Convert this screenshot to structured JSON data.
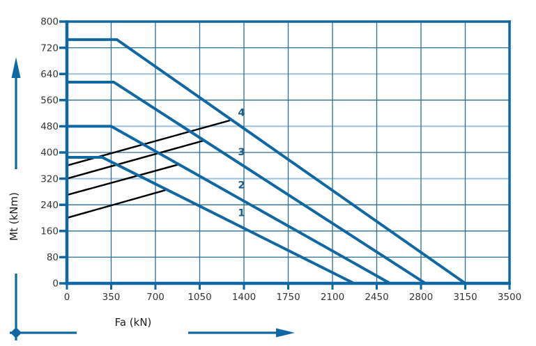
{
  "chart_data": {
    "type": "line",
    "title": "",
    "xlabel": "Fa (kN)",
    "ylabel": "Mt (kNm)",
    "xlim": [
      0,
      3500
    ],
    "ylim": [
      0,
      800
    ],
    "x_ticks": [
      0,
      350,
      700,
      1050,
      1400,
      1750,
      2100,
      2450,
      2800,
      3150,
      3500
    ],
    "y_ticks": [
      0,
      80,
      160,
      240,
      320,
      400,
      480,
      560,
      640,
      720,
      800
    ],
    "grid": "on",
    "legend": "none",
    "light_horizontal_gridlines": [
      320,
      480,
      640
    ],
    "series": [
      {
        "name": "capacity-curve-1",
        "label": "1",
        "kind": "capacity-curve",
        "color": "#0f67a3",
        "width": 4,
        "points": [
          [
            0,
            385
          ],
          [
            280,
            385
          ],
          [
            2270,
            0
          ]
        ],
        "label_pos": [
          1380,
          205
        ]
      },
      {
        "name": "capacity-curve-2",
        "label": "2",
        "kind": "capacity-curve",
        "color": "#0f67a3",
        "width": 4,
        "points": [
          [
            0,
            480
          ],
          [
            350,
            480
          ],
          [
            2555,
            0
          ]
        ],
        "label_pos": [
          1380,
          290
        ]
      },
      {
        "name": "capacity-curve-3",
        "label": "3",
        "kind": "capacity-curve",
        "color": "#0f67a3",
        "width": 4,
        "points": [
          [
            0,
            615
          ],
          [
            370,
            615
          ],
          [
            2835,
            0
          ]
        ],
        "label_pos": [
          1380,
          392
        ]
      },
      {
        "name": "capacity-curve-4",
        "label": "4",
        "kind": "capacity-curve",
        "color": "#0f67a3",
        "width": 4,
        "points": [
          [
            0,
            745
          ],
          [
            395,
            745
          ],
          [
            3150,
            0
          ]
        ],
        "label_pos": [
          1380,
          512
        ]
      },
      {
        "name": "aux-line-1",
        "label": "",
        "kind": "aux-line",
        "color": "#000000",
        "width": 2.5,
        "points": [
          [
            0,
            200
          ],
          [
            780,
            285
          ]
        ]
      },
      {
        "name": "aux-line-2",
        "label": "",
        "kind": "aux-line",
        "color": "#000000",
        "width": 2.5,
        "points": [
          [
            0,
            270
          ],
          [
            890,
            364
          ]
        ]
      },
      {
        "name": "aux-line-3",
        "label": "",
        "kind": "aux-line",
        "color": "#000000",
        "width": 2.5,
        "points": [
          [
            0,
            320
          ],
          [
            1080,
            436
          ]
        ]
      },
      {
        "name": "aux-line-4",
        "label": "",
        "kind": "aux-line",
        "color": "#000000",
        "width": 2.5,
        "points": [
          [
            0,
            360
          ],
          [
            1290,
            498
          ]
        ]
      }
    ]
  },
  "colors": {
    "axis_blue": "#0f67a3",
    "grid_dark": "#2a6d94",
    "grid_light": "#9cc0da",
    "aux_black": "#000000",
    "tick_text": "#343434",
    "curve_label_blue": "#185c8c",
    "background": "#ffffff"
  }
}
